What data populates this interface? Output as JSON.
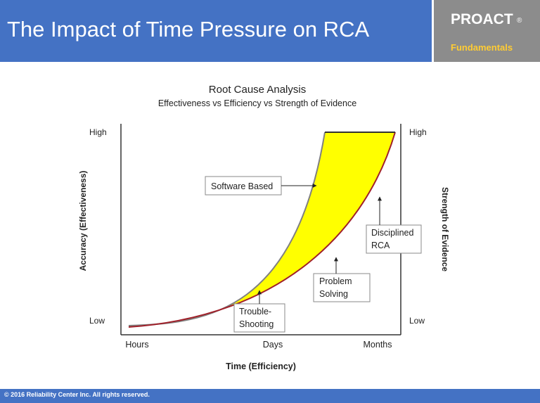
{
  "header": {
    "title": "The Impact of Time Pressure on RCA",
    "brand_name": "PROACT",
    "brand_mark": "®",
    "brand_subtitle": "Fundamentals"
  },
  "diagram": {
    "title": "Root Cause Analysis",
    "subtitle": "Effectiveness vs Efficiency vs Strength of Evidence",
    "left_axis_label": "Accuracy (Effectiveness)",
    "right_axis_label": "Strength of Evidence",
    "bottom_axis_label": "Time (Efficiency)",
    "left_high": "High",
    "left_low": "Low",
    "right_high": "High",
    "right_low": "Low",
    "x_ticks": [
      "Hours",
      "Days",
      "Months"
    ],
    "callouts": {
      "software_based": "Software Based",
      "disciplined_rca_1": "Disciplined",
      "disciplined_rca_2": "RCA",
      "problem_solving_1": "Problem",
      "problem_solving_2": "Solving",
      "trouble_shooting_1": "Trouble-",
      "trouble_shooting_2": "Shooting"
    },
    "colors": {
      "fill": "#ffff00",
      "upper_curve": "#808080",
      "lower_curve": "#a0202a",
      "frame": "#333333"
    }
  },
  "footer": {
    "copyright": "© 2016 Reliability Center Inc.  All rights reserved."
  }
}
